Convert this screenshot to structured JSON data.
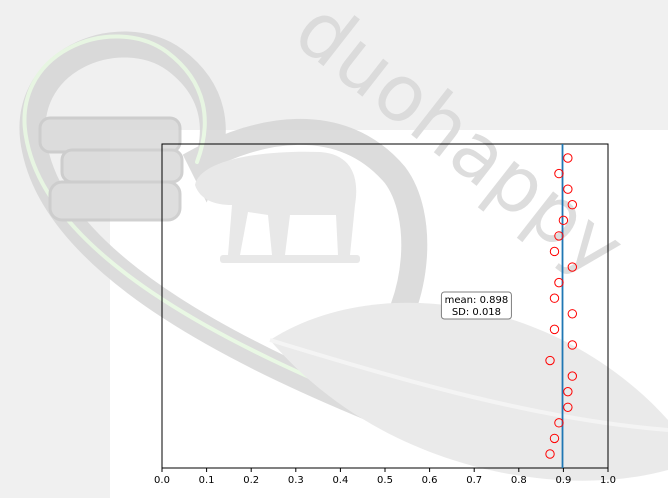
{
  "watermark": {
    "brand_text": "duohappy",
    "colors": {
      "gray": "#d6d6d6",
      "light": "#e7e7e7",
      "green_glow": "#e6f7e0"
    }
  },
  "chart_data": {
    "type": "scatter",
    "title": "",
    "xlabel": "",
    "ylabel": "",
    "xlim": [
      0.0,
      1.0
    ],
    "x_ticks": [
      "0.0",
      "0.1",
      "0.2",
      "0.3",
      "0.4",
      "0.5",
      "0.6",
      "0.7",
      "0.8",
      "0.9",
      "1.0"
    ],
    "grid": false,
    "marker": "open-circle",
    "marker_color": "#ff0000",
    "points": [
      0.91,
      0.89,
      0.91,
      0.92,
      0.9,
      0.89,
      0.88,
      0.92,
      0.89,
      0.88,
      0.92,
      0.88,
      0.92,
      0.87,
      0.92,
      0.91,
      0.91,
      0.89,
      0.88,
      0.87
    ],
    "mean_line": {
      "value": 0.898,
      "color": "#1f77b4"
    },
    "annotation": {
      "line1": "mean: 0.898",
      "line2": "SD: 0.018",
      "anchor_x": 0.705
    }
  }
}
